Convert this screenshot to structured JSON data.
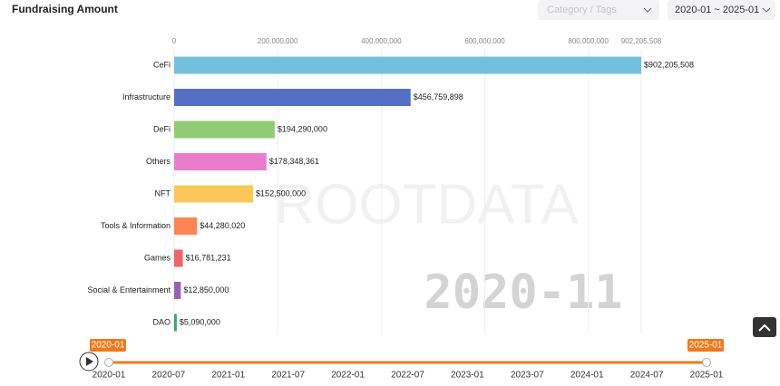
{
  "header": {
    "title": "Fundraising Amount",
    "filter_placeholder": "Category / Tags",
    "date_range": "2020-01 ~ 2025-01"
  },
  "chart_data": {
    "type": "bar",
    "horizontal": true,
    "categories": [
      "CeFi",
      "Infrastructure",
      "DeFi",
      "Others",
      "NFT",
      "Tools & Information",
      "Games",
      "Social & Entertainment",
      "DAO"
    ],
    "values": [
      902205508,
      456759898,
      194290000,
      178348361,
      152500000,
      44280020,
      16781231,
      12850000,
      5090000
    ],
    "value_labels": [
      "$902,205,508",
      "$456,759,898",
      "$194,290,000",
      "$178,348,361",
      "$152,500,000",
      "$44,280,020",
      "$16,781,231",
      "$12,850,000",
      "$5,090,000"
    ],
    "colors": [
      "#73c0de",
      "#5470c6",
      "#91cc75",
      "#ea7ccc",
      "#fac858",
      "#fc8452",
      "#ee6666",
      "#9a60b4",
      "#3ba272"
    ],
    "xlim": [
      0,
      902205508
    ],
    "xticks": [
      0,
      {
        "value": 200000000,
        "label": "200,000,000"
      },
      {
        "value": 400000000,
        "label": "400,000,000"
      },
      {
        "value": 600000000,
        "label": "600,000,000"
      },
      {
        "value": 800000000,
        "label": "800,000,000"
      },
      {
        "value": 902205508,
        "label": "902,205,508"
      }
    ],
    "grid": true,
    "period": "2020-11",
    "watermark": "ROOTDATA"
  },
  "timeline": {
    "labels": [
      "2020-01",
      "2020-07",
      "2021-01",
      "2021-07",
      "2022-01",
      "2022-07",
      "2023-01",
      "2023-07",
      "2024-01",
      "2024-07",
      "2025-01"
    ],
    "start": "2020-01",
    "end": "2025-01"
  }
}
